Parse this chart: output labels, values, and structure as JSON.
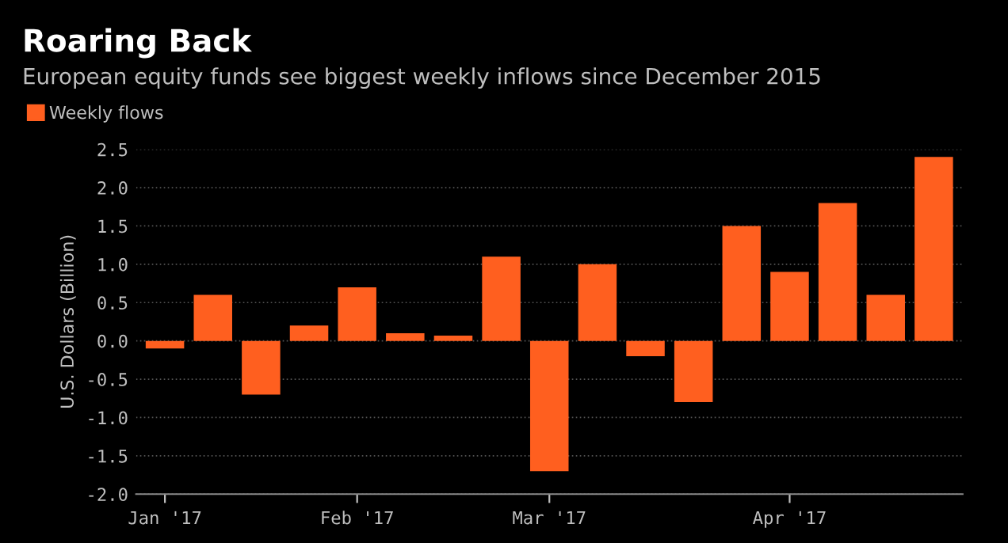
{
  "chart_data": {
    "type": "bar",
    "title": "Roaring Back",
    "subtitle": "European equity funds see biggest weekly inflows since December 2015",
    "ylabel": "U.S. Dollars (Billion)",
    "categories": [
      "Jan '17",
      null,
      null,
      null,
      "Feb '17",
      null,
      null,
      null,
      "Mar '17",
      null,
      null,
      null,
      null,
      "Apr '17",
      null,
      null,
      null
    ],
    "series": [
      {
        "name": "Weekly flows",
        "color": "#ff5f1f",
        "values": [
          -0.1,
          0.6,
          -0.7,
          0.2,
          0.7,
          0.1,
          0.07,
          1.1,
          -1.7,
          1.0,
          -0.2,
          -0.8,
          1.5,
          0.9,
          1.8,
          0.6,
          2.4
        ]
      }
    ],
    "ylim": [
      -2.0,
      2.5
    ],
    "yticks": [
      {
        "value": -2.0,
        "label": "-2.0"
      },
      {
        "value": -1.5,
        "label": "-1.5"
      },
      {
        "value": -1.0,
        "label": "-1.0"
      },
      {
        "value": -0.5,
        "label": "-0.5"
      },
      {
        "value": 0.0,
        "label": "0.0"
      },
      {
        "value": 0.5,
        "label": "0.5"
      },
      {
        "value": 1.0,
        "label": "1.0"
      },
      {
        "value": 1.5,
        "label": "1.5"
      },
      {
        "value": 2.0,
        "label": "2.0"
      },
      {
        "value": 2.5,
        "label": "2.5"
      }
    ],
    "grid": "y",
    "legend": "top left"
  }
}
